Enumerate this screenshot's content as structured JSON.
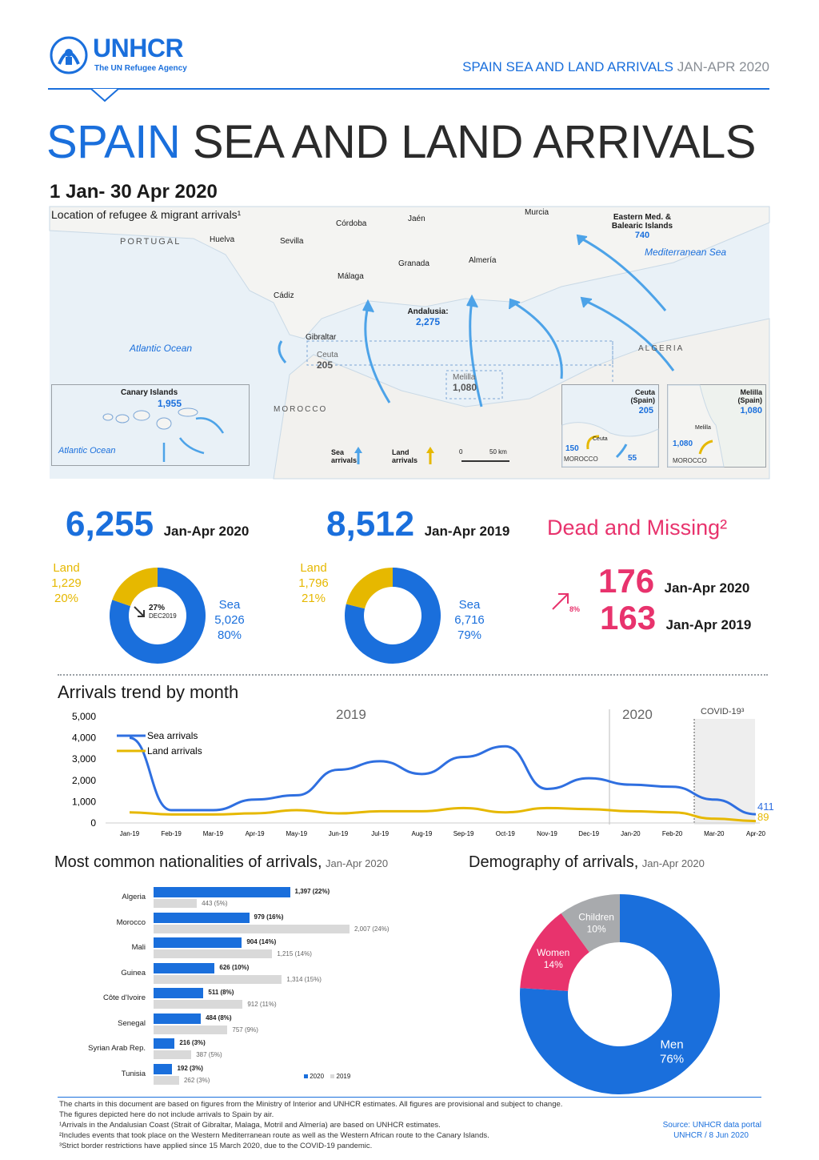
{
  "logo": {
    "name": "UNHCR",
    "tagline": "The UN Refugee Agency"
  },
  "header": {
    "strip_title_bold": "SPAIN SEA AND LAND ARRIVALS",
    "strip_title_light": "JAN-APR 2020"
  },
  "title": {
    "bold": "SPAIN",
    "light": "SEA AND LAND ARRIVALS"
  },
  "subtitle": "1 Jan- 30 Apr 2020",
  "map": {
    "heading": "Location of refugee & migrant arrivals¹",
    "places": {
      "portugal": "PORTUGAL",
      "huelva": "Huelva",
      "sevilla": "Sevilla",
      "cordoba": "Córdoba",
      "jaen": "Jaén",
      "murcia": "Murcia",
      "granada": "Granada",
      "almeria": "Almería",
      "malaga": "Málaga",
      "cadiz": "Cádiz",
      "gibraltar": "Gibraltar",
      "algeria": "ALGERIA",
      "morocco": "MOROCCO",
      "atlantic": "Atlantic Ocean",
      "mediterranean": "Mediterranean Sea"
    },
    "regions": {
      "eastern_label": "Eastern Med. & Balearic Islands",
      "eastern_value": "740",
      "andalusia_label": "Andalusia:",
      "andalusia_value": "2,275",
      "ceuta_label": "Ceuta",
      "ceuta_value": "205",
      "melilla_label": "Melilla",
      "melilla_value": "1,080",
      "canary_label": "Canary Islands",
      "canary_value": "1,955",
      "canary_ocean": "Atlantic Ocean"
    },
    "legend": {
      "sea": "Sea arrivals",
      "land": "Land arrivals",
      "scale_0": "0",
      "scale_50": "50 km"
    },
    "inset_ceuta": {
      "title": "Ceuta (Spain)",
      "value": "205",
      "land": "150",
      "sea": "55",
      "town": "Ceuta",
      "country": "MOROCCO"
    },
    "inset_melilla": {
      "title": "Melilla (Spain)",
      "value": "1,080",
      "land": "1,080",
      "town": "Melilla",
      "country": "MOROCCO"
    }
  },
  "totals": {
    "total_2020": "6,255",
    "period_2020": "Jan-Apr 2020",
    "total_2019": "8,512",
    "period_2019": "Jan-Apr 2019",
    "donut_2020": {
      "land_label": "Land",
      "land_value": "1,229",
      "land_pct": "20%",
      "sea_label": "Sea",
      "sea_value": "5,026",
      "sea_pct": "80%",
      "change_pct": "27%",
      "change_label": "DEC2019"
    },
    "donut_2019": {
      "land_label": "Land",
      "land_value": "1,796",
      "land_pct": "21%",
      "sea_label": "Sea",
      "sea_value": "6,716",
      "sea_pct": "79%"
    }
  },
  "dead_missing": {
    "title": "Dead and Missing²",
    "change_pct": "8%",
    "value_2020": "176",
    "label_2020": "Jan-Apr 2020",
    "value_2019": "163",
    "label_2019": "Jan-Apr 2019"
  },
  "trend": {
    "title": "Arrivals trend by month",
    "year_2019": "2019",
    "year_2020": "2020",
    "covid": "COVID-19³",
    "end_sea": "411",
    "end_land": "89"
  },
  "nationalities": {
    "title": "Most common nationalities of arrivals,",
    "period": "Jan-Apr 2020",
    "legend_2020": "2020",
    "legend_2019": "2019"
  },
  "demography": {
    "title": "Demography of arrivals,",
    "period": "Jan-Apr 2020"
  },
  "chart_data": [
    {
      "type": "pie",
      "title": "",
      "categories": [
        "Sea",
        "Land"
      ],
      "values": [
        5026,
        1229
      ],
      "period": "Jan-Apr 2020",
      "colors": [
        "#1a6fdc",
        "#e6b800"
      ]
    },
    {
      "type": "pie",
      "title": "",
      "categories": [
        "Sea",
        "Land"
      ],
      "values": [
        6716,
        1796
      ],
      "period": "Jan-Apr 2019",
      "colors": [
        "#1a6fdc",
        "#e6b800"
      ]
    },
    {
      "type": "line",
      "title": "Arrivals trend by month",
      "x": [
        "Jan-19",
        "Feb-19",
        "Mar-19",
        "Apr-19",
        "May-19",
        "Jun-19",
        "Jul-19",
        "Aug-19",
        "Sep-19",
        "Oct-19",
        "Nov-19",
        "Dec-19",
        "Jan-20",
        "Feb-20",
        "Mar-20",
        "Apr-20"
      ],
      "ylim": [
        0,
        5000
      ],
      "yticks": [
        "0",
        "1,000",
        "2,000",
        "3,000",
        "4,000",
        "5,000"
      ],
      "series": [
        {
          "name": "Sea arrivals",
          "color": "#1a6fdc",
          "values": [
            4000,
            600,
            600,
            1100,
            1300,
            2500,
            2900,
            2300,
            3100,
            3600,
            1600,
            2100,
            1800,
            1700,
            1100,
            411
          ]
        },
        {
          "name": "Land arrivals",
          "color": "#e6b800",
          "values": [
            500,
            400,
            400,
            450,
            600,
            450,
            550,
            550,
            700,
            500,
            700,
            650,
            550,
            500,
            200,
            89
          ]
        }
      ],
      "grid": false,
      "legend": "top-left"
    },
    {
      "type": "bar",
      "title": "Most common nationalities of arrivals, Jan-Apr 2020",
      "orientation": "horizontal",
      "categories": [
        "Algeria",
        "Morocco",
        "Mali",
        "Guinea",
        "Côte d'Ivoire",
        "Senegal",
        "Syrian Arab Rep.",
        "Tunisia"
      ],
      "series": [
        {
          "name": "2020",
          "color": "#1a6fdc",
          "values": [
            1397,
            979,
            904,
            626,
            511,
            484,
            216,
            192
          ],
          "labels": [
            "1,397 (22%)",
            "979 (16%)",
            "904 (14%)",
            "626 (10%)",
            "511 (8%)",
            "484 (8%)",
            "216 (3%)",
            "192 (3%)"
          ]
        },
        {
          "name": "2019",
          "color": "#d9d9d9",
          "values": [
            443,
            2007,
            1215,
            1314,
            912,
            757,
            387,
            262
          ],
          "labels": [
            "443 (5%)",
            "2,007 (24%)",
            "1,215 (14%)",
            "1,314 (15%)",
            "912 (11%)",
            "757 (9%)",
            "387 (5%)",
            "262 (3%)"
          ]
        }
      ],
      "legend": "bottom-right"
    },
    {
      "type": "pie",
      "title": "Demography of arrivals, Jan-Apr 2020",
      "categories": [
        "Men",
        "Women",
        "Children"
      ],
      "values": [
        76,
        14,
        10
      ],
      "labels": [
        "Men 76%",
        "Women 14%",
        "Children 10%"
      ],
      "colors": [
        "#1a6fdc",
        "#e8336d",
        "#a8aaad"
      ]
    }
  ],
  "footer": {
    "line1": "The charts in this document are based on figures from the Ministry of Interior and UNHCR estimates. All figures are provisional and subject to change.",
    "line2": "The figures depicted here do not include arrivals to Spain by air.",
    "line3": "¹Arrivals in the Andalusian Coast (Strait of Gibraltar, Malaga, Motril and Almería) are based on UNHCR estimates.",
    "line4": "²Includes events that took place on the Western Mediterranean route as well as the Western African route to the Canary Islands.",
    "line5": "³Strict border restrictions have applied since 15 March 2020, due to the COVID-19 pandemic.",
    "source": "Source: UNHCR data portal",
    "credit": "UNHCR / 8 Jun 2020"
  }
}
